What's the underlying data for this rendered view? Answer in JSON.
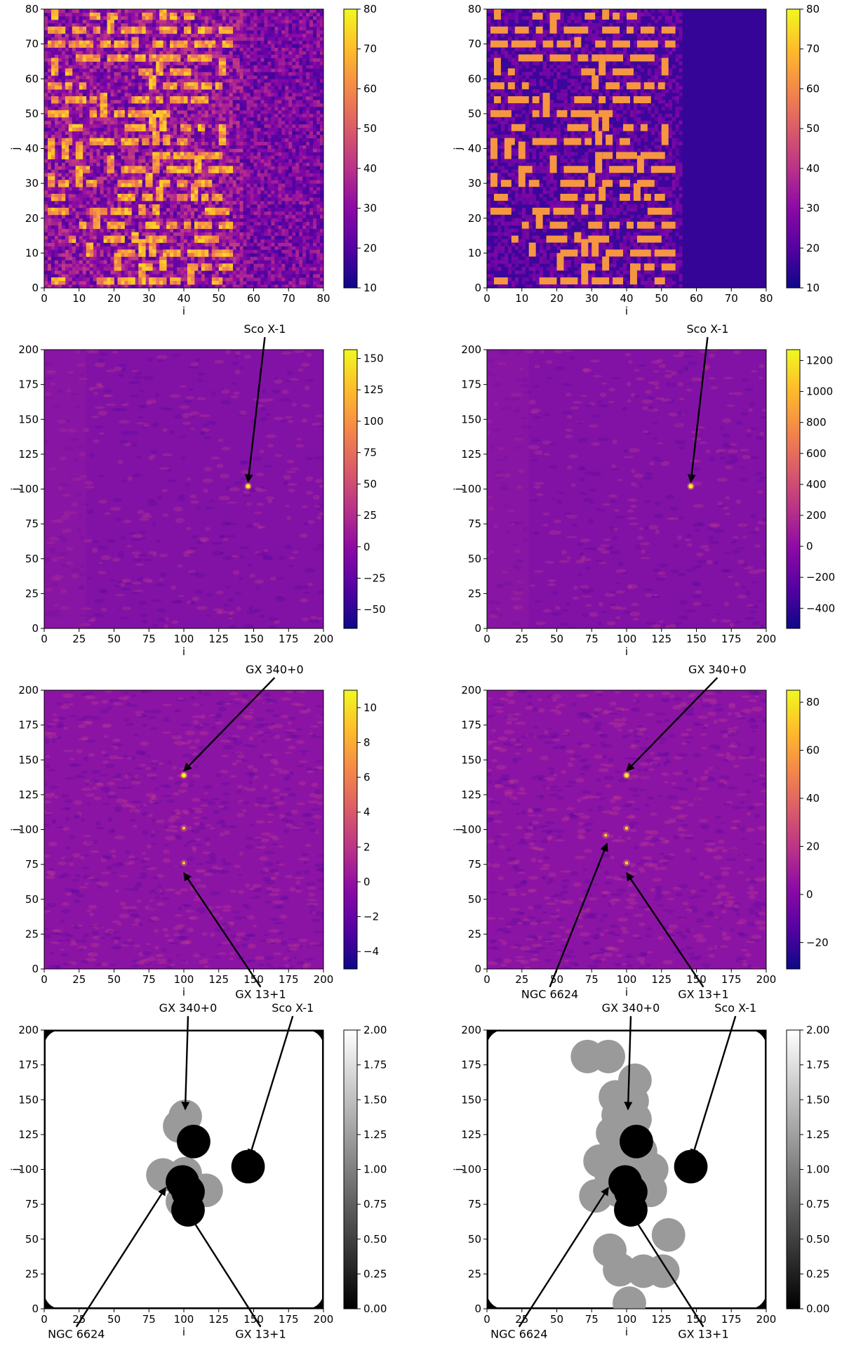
{
  "chart_data": [
    {
      "type": "heatmap",
      "panel": "mask-noisy",
      "colormap": "plasma",
      "xlabel": "i",
      "ylabel": "j",
      "xlim": [
        0,
        80
      ],
      "ylim": [
        0,
        80
      ],
      "xticks": [
        "0",
        "10",
        "20",
        "30",
        "40",
        "50",
        "60",
        "70",
        "80"
      ],
      "yticks": [
        "0",
        "10",
        "20",
        "30",
        "40",
        "50",
        "60",
        "70",
        "80"
      ],
      "colorbar": {
        "min": 10,
        "max": 80,
        "ticks": [
          "10",
          "20",
          "30",
          "40",
          "50",
          "60",
          "70",
          "80"
        ]
      },
      "annotations": []
    },
    {
      "type": "heatmap",
      "panel": "mask-smooth",
      "colormap": "plasma",
      "xlabel": "i",
      "ylabel": "j",
      "xlim": [
        0,
        80
      ],
      "ylim": [
        0,
        80
      ],
      "xticks": [
        "0",
        "10",
        "20",
        "30",
        "40",
        "50",
        "60",
        "70",
        "80"
      ],
      "yticks": [
        "0",
        "10",
        "20",
        "30",
        "40",
        "50",
        "60",
        "70",
        "80"
      ],
      "colorbar": {
        "min": 10,
        "max": 80,
        "ticks": [
          "10",
          "20",
          "30",
          "40",
          "50",
          "60",
          "70",
          "80"
        ]
      },
      "annotations": []
    },
    {
      "type": "heatmap",
      "panel": "sky-sco-left",
      "colormap": "plasma",
      "xlabel": "i",
      "ylabel": "j",
      "xlim": [
        0,
        200
      ],
      "ylim": [
        0,
        200
      ],
      "xticks": [
        "0",
        "25",
        "50",
        "75",
        "100",
        "125",
        "150",
        "175",
        "200"
      ],
      "yticks": [
        "0",
        "25",
        "50",
        "75",
        "100",
        "125",
        "150",
        "175",
        "200"
      ],
      "colorbar": {
        "min": -65,
        "max": 157,
        "ticks": [
          "−50",
          "−25",
          "0",
          "25",
          "50",
          "75",
          "100",
          "125",
          "150"
        ]
      },
      "sources": [
        {
          "x": 146,
          "y": 102,
          "strength": 1.0
        }
      ],
      "annotations": [
        {
          "text": "Sco X-1",
          "x": 146,
          "y": 102
        }
      ]
    },
    {
      "type": "heatmap",
      "panel": "sky-sco-right",
      "colormap": "plasma",
      "xlabel": "i",
      "ylabel": "j",
      "xlim": [
        0,
        200
      ],
      "ylim": [
        0,
        200
      ],
      "xticks": [
        "0",
        "25",
        "50",
        "75",
        "100",
        "125",
        "150",
        "175",
        "200"
      ],
      "yticks": [
        "0",
        "25",
        "50",
        "75",
        "100",
        "125",
        "150",
        "175",
        "200"
      ],
      "colorbar": {
        "min": -530,
        "max": 1270,
        "ticks": [
          "−400",
          "−200",
          "0",
          "200",
          "400",
          "600",
          "800",
          "1000",
          "1200"
        ]
      },
      "sources": [
        {
          "x": 146,
          "y": 102,
          "strength": 1.0
        }
      ],
      "annotations": [
        {
          "text": "Sco X-1",
          "x": 146,
          "y": 102
        }
      ]
    },
    {
      "type": "heatmap",
      "panel": "sky-gx-left",
      "colormap": "plasma",
      "xlabel": "i",
      "ylabel": "j",
      "xlim": [
        0,
        200
      ],
      "ylim": [
        0,
        200
      ],
      "xticks": [
        "0",
        "25",
        "50",
        "75",
        "100",
        "125",
        "150",
        "175",
        "200"
      ],
      "yticks": [
        "0",
        "25",
        "50",
        "75",
        "100",
        "125",
        "150",
        "175",
        "200"
      ],
      "colorbar": {
        "min": -5,
        "max": 11,
        "ticks": [
          "−4",
          "−2",
          "0",
          "2",
          "4",
          "6",
          "8",
          "10"
        ]
      },
      "sources": [
        {
          "x": 100,
          "y": 139,
          "strength": 1.0
        },
        {
          "x": 100,
          "y": 101,
          "strength": 0.6
        },
        {
          "x": 100,
          "y": 76,
          "strength": 0.6
        }
      ],
      "annotations": [
        {
          "text": "GX 340+0",
          "x": 100,
          "y": 139
        },
        {
          "text": "GX 13+1",
          "x": 100,
          "y": 72
        }
      ]
    },
    {
      "type": "heatmap",
      "panel": "sky-gx-right",
      "colormap": "plasma",
      "xlabel": "i",
      "ylabel": "j",
      "xlim": [
        0,
        200
      ],
      "ylim": [
        0,
        200
      ],
      "xticks": [
        "0",
        "25",
        "50",
        "75",
        "100",
        "125",
        "150",
        "175",
        "200"
      ],
      "yticks": [
        "0",
        "25",
        "50",
        "75",
        "100",
        "125",
        "150",
        "175",
        "200"
      ],
      "colorbar": {
        "min": -31,
        "max": 85,
        "ticks": [
          "−20",
          "0",
          "20",
          "40",
          "60",
          "80"
        ]
      },
      "sources": [
        {
          "x": 100,
          "y": 139,
          "strength": 1.0
        },
        {
          "x": 100,
          "y": 101,
          "strength": 0.7
        },
        {
          "x": 100,
          "y": 76,
          "strength": 0.7
        },
        {
          "x": 85,
          "y": 96,
          "strength": 0.6
        }
      ],
      "annotations": [
        {
          "text": "GX 340+0",
          "x": 100,
          "y": 139
        },
        {
          "text": "NGC 6624",
          "x": 86,
          "y": 93
        },
        {
          "text": "GX 13+1",
          "x": 100,
          "y": 72
        }
      ]
    },
    {
      "type": "heatmap",
      "panel": "catalog-left",
      "colormap": "gray",
      "xlabel": "i",
      "ylabel": "j",
      "xlim": [
        0,
        200
      ],
      "ylim": [
        0,
        200
      ],
      "xticks": [
        "0",
        "25",
        "50",
        "75",
        "100",
        "125",
        "150",
        "175",
        "200"
      ],
      "yticks": [
        "0",
        "25",
        "50",
        "75",
        "100",
        "125",
        "150",
        "175",
        "200"
      ],
      "colorbar": {
        "min": 0,
        "max": 2,
        "ticks": [
          "0.00",
          "0.25",
          "0.50",
          "0.75",
          "1.00",
          "1.25",
          "1.50",
          "1.75",
          "2.00"
        ]
      },
      "gray_sources": [
        [
          101,
          138
        ],
        [
          97,
          131
        ],
        [
          85,
          96
        ],
        [
          101,
          97
        ],
        [
          116,
          85
        ],
        [
          99,
          77
        ]
      ],
      "black_sources": [
        [
          107,
          120
        ],
        [
          146,
          102
        ],
        [
          99,
          91
        ],
        [
          103,
          84
        ],
        [
          103,
          71
        ]
      ],
      "annotations": [
        {
          "text": "GX 340+0",
          "x": 101,
          "y": 140
        },
        {
          "text": "Sco X-1",
          "x": 147,
          "y": 106
        },
        {
          "text": "NGC 6624",
          "x": 87,
          "y": 90
        },
        {
          "text": "GX 13+1",
          "x": 101,
          "y": 75
        }
      ]
    },
    {
      "type": "heatmap",
      "panel": "catalog-right",
      "colormap": "gray",
      "xlabel": "i",
      "ylabel": "j",
      "xlim": [
        0,
        200
      ],
      "ylim": [
        0,
        200
      ],
      "xticks": [
        "0",
        "25",
        "50",
        "75",
        "100",
        "125",
        "150",
        "175",
        "200"
      ],
      "yticks": [
        "0",
        "25",
        "50",
        "75",
        "100",
        "125",
        "150",
        "175",
        "200"
      ],
      "colorbar": {
        "min": 0,
        "max": 2,
        "ticks": [
          "0.00",
          "0.25",
          "0.50",
          "0.75",
          "1.00",
          "1.25",
          "1.50",
          "1.75",
          "2.00"
        ]
      },
      "gray_sources": [
        [
          72,
          181
        ],
        [
          87,
          181
        ],
        [
          106,
          164
        ],
        [
          92,
          152
        ],
        [
          104,
          149
        ],
        [
          94,
          139
        ],
        [
          106,
          136
        ],
        [
          90,
          126
        ],
        [
          104,
          127
        ],
        [
          97,
          115
        ],
        [
          110,
          113
        ],
        [
          92,
          111
        ],
        [
          101,
          106
        ],
        [
          81,
          106
        ],
        [
          118,
          100
        ],
        [
          110,
          98
        ],
        [
          89,
          96
        ],
        [
          117,
          85
        ],
        [
          78,
          81
        ],
        [
          94,
          85
        ],
        [
          105,
          80
        ],
        [
          130,
          53
        ],
        [
          88,
          42
        ],
        [
          95,
          28
        ],
        [
          112,
          27
        ],
        [
          126,
          27
        ],
        [
          102,
          4
        ]
      ],
      "black_sources": [
        [
          107,
          120
        ],
        [
          146,
          102
        ],
        [
          99,
          91
        ],
        [
          103,
          84
        ],
        [
          103,
          71
        ]
      ],
      "annotations": [
        {
          "text": "GX 340+0",
          "x": 101,
          "y": 140
        },
        {
          "text": "Sco X-1",
          "x": 147,
          "y": 106
        },
        {
          "text": "NGC 6624",
          "x": 87,
          "y": 90
        },
        {
          "text": "GX 13+1",
          "x": 101,
          "y": 75
        }
      ]
    }
  ]
}
